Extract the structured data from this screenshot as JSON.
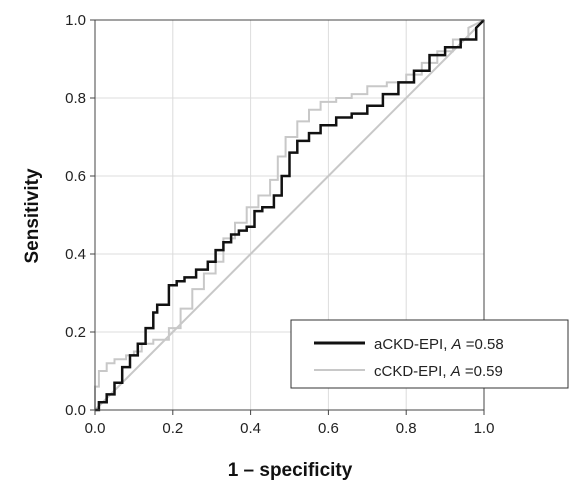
{
  "chart_data": {
    "type": "line",
    "xlabel": "1 – specificity",
    "ylabel": "Sensitivity",
    "xlim": [
      0,
      1
    ],
    "ylim": [
      0,
      1
    ],
    "xticks": [
      "0.0",
      "0.2",
      "0.4",
      "0.6",
      "0.8",
      "1.0"
    ],
    "yticks": [
      "0.0",
      "0.2",
      "0.4",
      "0.6",
      "0.8",
      "1.0"
    ],
    "grid": true,
    "legend_position": "bottom-right",
    "reference_line": {
      "x": [
        0,
        1
      ],
      "y": [
        0,
        1
      ],
      "color": "#c8c8c8"
    },
    "series": [
      {
        "name": "aCKD-EPI",
        "area_label": "A",
        "area_value": "=0.58",
        "color": "#111111",
        "x": [
          0.0,
          0.01,
          0.01,
          0.03,
          0.03,
          0.05,
          0.05,
          0.07,
          0.07,
          0.09,
          0.09,
          0.11,
          0.11,
          0.13,
          0.13,
          0.15,
          0.15,
          0.16,
          0.16,
          0.19,
          0.19,
          0.21,
          0.21,
          0.23,
          0.23,
          0.26,
          0.26,
          0.29,
          0.29,
          0.31,
          0.31,
          0.33,
          0.33,
          0.35,
          0.35,
          0.37,
          0.37,
          0.39,
          0.39,
          0.41,
          0.41,
          0.43,
          0.43,
          0.46,
          0.46,
          0.48,
          0.48,
          0.5,
          0.5,
          0.52,
          0.52,
          0.55,
          0.55,
          0.58,
          0.58,
          0.62,
          0.62,
          0.66,
          0.66,
          0.7,
          0.7,
          0.74,
          0.74,
          0.78,
          0.78,
          0.82,
          0.82,
          0.86,
          0.86,
          0.9,
          0.9,
          0.94,
          0.94,
          0.98,
          0.98,
          1.0
        ],
        "y": [
          0.0,
          0.0,
          0.02,
          0.02,
          0.04,
          0.04,
          0.07,
          0.07,
          0.11,
          0.11,
          0.14,
          0.14,
          0.17,
          0.17,
          0.21,
          0.21,
          0.25,
          0.25,
          0.27,
          0.27,
          0.32,
          0.32,
          0.33,
          0.33,
          0.34,
          0.34,
          0.36,
          0.36,
          0.38,
          0.38,
          0.41,
          0.41,
          0.43,
          0.43,
          0.45,
          0.45,
          0.46,
          0.46,
          0.47,
          0.47,
          0.51,
          0.51,
          0.52,
          0.52,
          0.55,
          0.55,
          0.6,
          0.6,
          0.66,
          0.66,
          0.69,
          0.69,
          0.71,
          0.71,
          0.73,
          0.73,
          0.75,
          0.75,
          0.76,
          0.76,
          0.78,
          0.78,
          0.81,
          0.81,
          0.84,
          0.84,
          0.87,
          0.87,
          0.91,
          0.91,
          0.93,
          0.93,
          0.95,
          0.95,
          0.98,
          1.0
        ]
      },
      {
        "name": "cCKD-EPI",
        "area_label": "A",
        "area_value": "=0.59",
        "color": "#c8c8c8",
        "x": [
          0.0,
          0.0,
          0.01,
          0.01,
          0.03,
          0.03,
          0.05,
          0.05,
          0.08,
          0.08,
          0.1,
          0.1,
          0.12,
          0.12,
          0.15,
          0.15,
          0.19,
          0.19,
          0.22,
          0.22,
          0.25,
          0.25,
          0.28,
          0.28,
          0.31,
          0.31,
          0.33,
          0.33,
          0.36,
          0.36,
          0.39,
          0.39,
          0.42,
          0.42,
          0.45,
          0.45,
          0.47,
          0.47,
          0.49,
          0.49,
          0.52,
          0.52,
          0.55,
          0.55,
          0.58,
          0.58,
          0.62,
          0.62,
          0.66,
          0.66,
          0.7,
          0.7,
          0.75,
          0.75,
          0.8,
          0.8,
          0.84,
          0.84,
          0.88,
          0.88,
          0.92,
          0.92,
          0.96,
          0.96,
          1.0
        ],
        "y": [
          0.0,
          0.06,
          0.06,
          0.1,
          0.1,
          0.12,
          0.12,
          0.13,
          0.13,
          0.14,
          0.14,
          0.15,
          0.15,
          0.17,
          0.17,
          0.18,
          0.18,
          0.21,
          0.21,
          0.26,
          0.26,
          0.31,
          0.31,
          0.35,
          0.35,
          0.38,
          0.38,
          0.44,
          0.44,
          0.48,
          0.48,
          0.52,
          0.52,
          0.55,
          0.55,
          0.59,
          0.59,
          0.65,
          0.65,
          0.7,
          0.7,
          0.74,
          0.74,
          0.77,
          0.77,
          0.79,
          0.79,
          0.8,
          0.8,
          0.81,
          0.81,
          0.83,
          0.83,
          0.84,
          0.84,
          0.86,
          0.86,
          0.89,
          0.89,
          0.92,
          0.92,
          0.95,
          0.95,
          0.98,
          1.0
        ]
      }
    ]
  }
}
